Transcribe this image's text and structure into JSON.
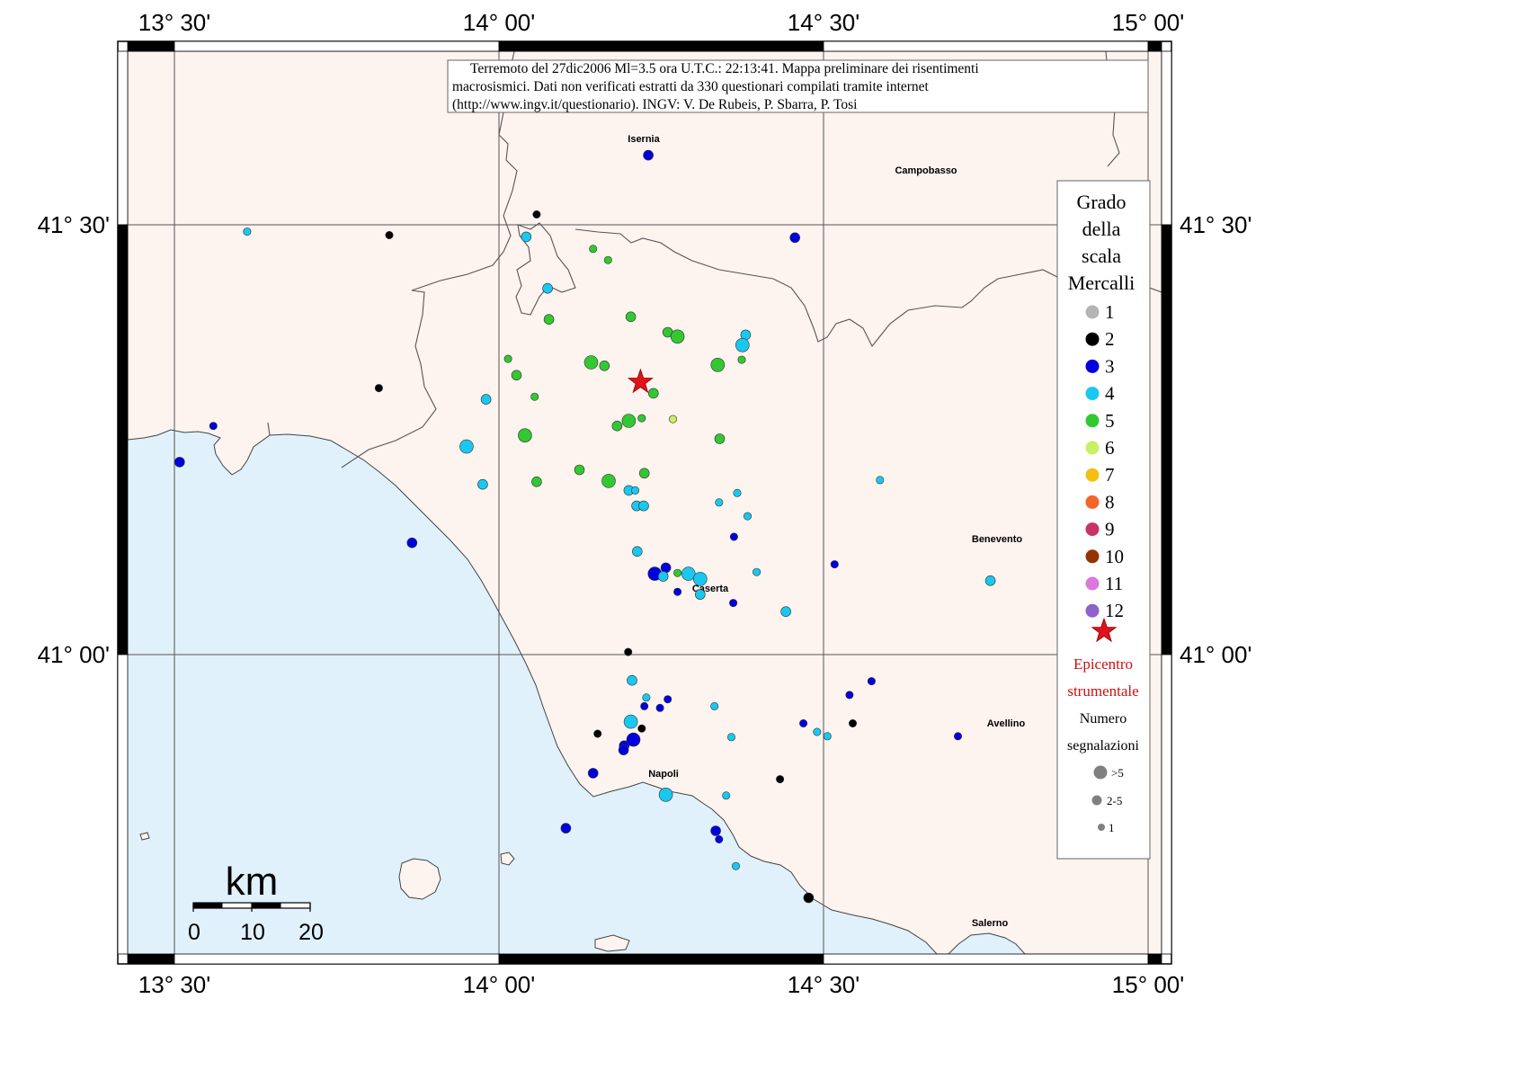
{
  "axes": {
    "lon_labels": [
      "13° 30'",
      "14° 00'",
      "14° 30'",
      "15° 00'"
    ],
    "lat_labels": [
      "41° 30'",
      "41° 00'"
    ]
  },
  "note": {
    "lines": [
      "Terremoto del 27dic2006 Ml=3.5 ora U.T.C.: 22:13:41.  Mappa preliminare dei risentimenti",
      "macrosismici.   Dati non verificati estratti da 330 questionari compilati tramite internet",
      "(http://www.ingv.it/questionario).   INGV: V.  De Rubeis, P.  Sbarra, P.  Tosi"
    ]
  },
  "cities": {
    "isernia": "Isernia",
    "campobasso": "Campobasso",
    "benevento": "Benevento",
    "caserta": "Caserta",
    "avellino": "Avellino",
    "napoli": "Napoli",
    "salerno": "Salerno"
  },
  "legend": {
    "title": [
      "Grado",
      "della",
      "scala",
      "Mercalli"
    ],
    "grades": [
      {
        "label": "1",
        "color": "#b4b4b4"
      },
      {
        "label": "2",
        "color": "#000000"
      },
      {
        "label": "3",
        "color": "#0000dd"
      },
      {
        "label": "4",
        "color": "#19c8f0"
      },
      {
        "label": "5",
        "color": "#32c832"
      },
      {
        "label": "6",
        "color": "#c8f064"
      },
      {
        "label": "7",
        "color": "#f5be14"
      },
      {
        "label": "8",
        "color": "#f56428"
      },
      {
        "label": "9",
        "color": "#c83264"
      },
      {
        "label": "10",
        "color": "#963200"
      },
      {
        "label": "11",
        "color": "#dc78dc"
      },
      {
        "label": "12",
        "color": "#8c64c8"
      }
    ],
    "epicentre_lines": [
      "Epicentro",
      "strumentale"
    ],
    "count_title": [
      "Numero",
      "segnalazioni"
    ],
    "sizes": [
      ">5",
      "2-5",
      "1"
    ]
  },
  "scale_bar": {
    "unit": "km",
    "ticks": [
      "0",
      "10",
      "20"
    ]
  },
  "colors": {
    "land": "#fdf3ef",
    "sea": "#e0f1fb",
    "epicentre": "#e0131a"
  },
  "epicentre": {
    "lon": 14.218,
    "lat": 41.317
  },
  "observations": [
    {
      "lon": 14.23,
      "lat": 41.581,
      "mcs": 3,
      "n": 2
    },
    {
      "lon": 14.058,
      "lat": 41.512,
      "mcs": 2,
      "n": 1
    },
    {
      "lon": 13.612,
      "lat": 41.492,
      "mcs": 4,
      "n": 1
    },
    {
      "lon": 13.831,
      "lat": 41.488,
      "mcs": 2,
      "n": 1
    },
    {
      "lon": 14.042,
      "lat": 41.486,
      "mcs": 4,
      "n": 2
    },
    {
      "lon": 14.145,
      "lat": 41.472,
      "mcs": 5,
      "n": 1
    },
    {
      "lon": 14.168,
      "lat": 41.459,
      "mcs": 5,
      "n": 1
    },
    {
      "lon": 14.456,
      "lat": 41.485,
      "mcs": 3,
      "n": 2
    },
    {
      "lon": 14.075,
      "lat": 41.426,
      "mcs": 4,
      "n": 2
    },
    {
      "lon": 14.077,
      "lat": 41.39,
      "mcs": 5,
      "n": 2
    },
    {
      "lon": 14.203,
      "lat": 41.393,
      "mcs": 5,
      "n": 2
    },
    {
      "lon": 14.26,
      "lat": 41.375,
      "mcs": 5,
      "n": 2
    },
    {
      "lon": 14.275,
      "lat": 41.37,
      "mcs": 5,
      "n": 3
    },
    {
      "lon": 14.38,
      "lat": 41.372,
      "mcs": 4,
      "n": 2
    },
    {
      "lon": 14.375,
      "lat": 41.36,
      "mcs": 4,
      "n": 3
    },
    {
      "lon": 14.014,
      "lat": 41.344,
      "mcs": 5,
      "n": 1
    },
    {
      "lon": 14.142,
      "lat": 41.34,
      "mcs": 5,
      "n": 3
    },
    {
      "lon": 14.1625,
      "lat": 41.336,
      "mcs": 5,
      "n": 2
    },
    {
      "lon": 14.027,
      "lat": 41.325,
      "mcs": 5,
      "n": 2
    },
    {
      "lon": 14.337,
      "lat": 41.337,
      "mcs": 5,
      "n": 3
    },
    {
      "lon": 14.374,
      "lat": 41.343,
      "mcs": 5,
      "n": 1
    },
    {
      "lon": 13.815,
      "lat": 41.31,
      "mcs": 2,
      "n": 1
    },
    {
      "lon": 13.98,
      "lat": 41.297,
      "mcs": 4,
      "n": 2
    },
    {
      "lon": 14.055,
      "lat": 41.3,
      "mcs": 5,
      "n": 1
    },
    {
      "lon": 14.238,
      "lat": 41.304,
      "mcs": 5,
      "n": 2
    },
    {
      "lon": 14.2,
      "lat": 41.272,
      "mcs": 5,
      "n": 3
    },
    {
      "lon": 14.22,
      "lat": 41.275,
      "mcs": 5,
      "n": 1
    },
    {
      "lon": 14.182,
      "lat": 41.266,
      "mcs": 5,
      "n": 2
    },
    {
      "lon": 14.268,
      "lat": 41.274,
      "mcs": 6,
      "n": 1
    },
    {
      "lon": 13.56,
      "lat": 41.266,
      "mcs": 3,
      "n": 1
    },
    {
      "lon": 14.04,
      "lat": 41.255,
      "mcs": 5,
      "n": 3
    },
    {
      "lon": 14.34,
      "lat": 41.251,
      "mcs": 5,
      "n": 2
    },
    {
      "lon": 13.95,
      "lat": 41.242,
      "mcs": 4,
      "n": 3
    },
    {
      "lon": 13.508,
      "lat": 41.224,
      "mcs": 3,
      "n": 2
    },
    {
      "lon": 14.124,
      "lat": 41.215,
      "mcs": 5,
      "n": 2
    },
    {
      "lon": 14.224,
      "lat": 41.211,
      "mcs": 5,
      "n": 2
    },
    {
      "lon": 13.975,
      "lat": 41.198,
      "mcs": 4,
      "n": 2
    },
    {
      "lon": 14.058,
      "lat": 41.201,
      "mcs": 5,
      "n": 2
    },
    {
      "lon": 14.169,
      "lat": 41.202,
      "mcs": 5,
      "n": 3
    },
    {
      "lon": 14.587,
      "lat": 41.203,
      "mcs": 4,
      "n": 1
    },
    {
      "lon": 14.2,
      "lat": 41.191,
      "mcs": 4,
      "n": 2
    },
    {
      "lon": 14.21,
      "lat": 41.191,
      "mcs": 4,
      "n": 1
    },
    {
      "lon": 14.367,
      "lat": 41.188,
      "mcs": 4,
      "n": 1
    },
    {
      "lon": 14.212,
      "lat": 41.173,
      "mcs": 4,
      "n": 2
    },
    {
      "lon": 14.223,
      "lat": 41.173,
      "mcs": 4,
      "n": 2
    },
    {
      "lon": 14.339,
      "lat": 41.177,
      "mcs": 4,
      "n": 1
    },
    {
      "lon": 14.383,
      "lat": 41.161,
      "mcs": 4,
      "n": 1
    },
    {
      "lon": 14.362,
      "lat": 41.137,
      "mcs": 3,
      "n": 1
    },
    {
      "lon": 13.866,
      "lat": 41.13,
      "mcs": 3,
      "n": 2
    },
    {
      "lon": 14.213,
      "lat": 41.12,
      "mcs": 4,
      "n": 2
    },
    {
      "lon": 14.517,
      "lat": 41.105,
      "mcs": 3,
      "n": 1
    },
    {
      "lon": 14.257,
      "lat": 41.101,
      "mcs": 3,
      "n": 2
    },
    {
      "lon": 14.24,
      "lat": 41.094,
      "mcs": 3,
      "n": 3
    },
    {
      "lon": 14.253,
      "lat": 41.091,
      "mcs": 4,
      "n": 2
    },
    {
      "lon": 14.275,
      "lat": 41.095,
      "mcs": 5,
      "n": 1
    },
    {
      "lon": 14.292,
      "lat": 41.094,
      "mcs": 4,
      "n": 3
    },
    {
      "lon": 14.31,
      "lat": 41.088,
      "mcs": 4,
      "n": 3
    },
    {
      "lon": 14.397,
      "lat": 41.096,
      "mcs": 4,
      "n": 1
    },
    {
      "lon": 14.757,
      "lat": 41.086,
      "mcs": 4,
      "n": 2
    },
    {
      "lon": 14.275,
      "lat": 41.073,
      "mcs": 3,
      "n": 1
    },
    {
      "lon": 14.31,
      "lat": 41.07,
      "mcs": 4,
      "n": 2
    },
    {
      "lon": 14.361,
      "lat": 41.06,
      "mcs": 3,
      "n": 1
    },
    {
      "lon": 14.442,
      "lat": 41.05,
      "mcs": 4,
      "n": 2
    },
    {
      "lon": 14.199,
      "lat": 41.003,
      "mcs": 2,
      "n": 1
    },
    {
      "lon": 14.205,
      "lat": 40.97,
      "mcs": 4,
      "n": 2
    },
    {
      "lon": 14.574,
      "lat": 40.969,
      "mcs": 3,
      "n": 1
    },
    {
      "lon": 14.54,
      "lat": 40.953,
      "mcs": 3,
      "n": 1
    },
    {
      "lon": 14.227,
      "lat": 40.95,
      "mcs": 4,
      "n": 1
    },
    {
      "lon": 14.26,
      "lat": 40.948,
      "mcs": 3,
      "n": 1
    },
    {
      "lon": 14.224,
      "lat": 40.94,
      "mcs": 3,
      "n": 1
    },
    {
      "lon": 14.248,
      "lat": 40.938,
      "mcs": 3,
      "n": 1
    },
    {
      "lon": 14.332,
      "lat": 40.94,
      "mcs": 4,
      "n": 1
    },
    {
      "lon": 14.203,
      "lat": 40.922,
      "mcs": 4,
      "n": 3
    },
    {
      "lon": 14.22,
      "lat": 40.914,
      "mcs": 2,
      "n": 1
    },
    {
      "lon": 14.152,
      "lat": 40.908,
      "mcs": 2,
      "n": 1
    },
    {
      "lon": 14.469,
      "lat": 40.92,
      "mcs": 3,
      "n": 1
    },
    {
      "lon": 14.545,
      "lat": 40.92,
      "mcs": 2,
      "n": 1
    },
    {
      "lon": 14.49,
      "lat": 40.91,
      "mcs": 4,
      "n": 1
    },
    {
      "lon": 14.506,
      "lat": 40.905,
      "mcs": 4,
      "n": 1
    },
    {
      "lon": 14.358,
      "lat": 40.904,
      "mcs": 4,
      "n": 1
    },
    {
      "lon": 14.707,
      "lat": 40.905,
      "mcs": 3,
      "n": 1
    },
    {
      "lon": 14.207,
      "lat": 40.901,
      "mcs": 3,
      "n": 3
    },
    {
      "lon": 14.193,
      "lat": 40.894,
      "mcs": 3,
      "n": 2
    },
    {
      "lon": 14.192,
      "lat": 40.889,
      "mcs": 3,
      "n": 2
    },
    {
      "lon": 14.145,
      "lat": 40.862,
      "mcs": 3,
      "n": 2
    },
    {
      "lon": 14.433,
      "lat": 40.855,
      "mcs": 2,
      "n": 1
    },
    {
      "lon": 14.257,
      "lat": 40.837,
      "mcs": 4,
      "n": 3
    },
    {
      "lon": 14.35,
      "lat": 40.836,
      "mcs": 4,
      "n": 1
    },
    {
      "lon": 14.103,
      "lat": 40.798,
      "mcs": 3,
      "n": 2
    },
    {
      "lon": 14.334,
      "lat": 40.795,
      "mcs": 3,
      "n": 2
    },
    {
      "lon": 14.339,
      "lat": 40.785,
      "mcs": 3,
      "n": 1
    },
    {
      "lon": 14.365,
      "lat": 40.754,
      "mcs": 4,
      "n": 1
    },
    {
      "lon": 14.477,
      "lat": 40.717,
      "mcs": 2,
      "n": 2
    }
  ]
}
